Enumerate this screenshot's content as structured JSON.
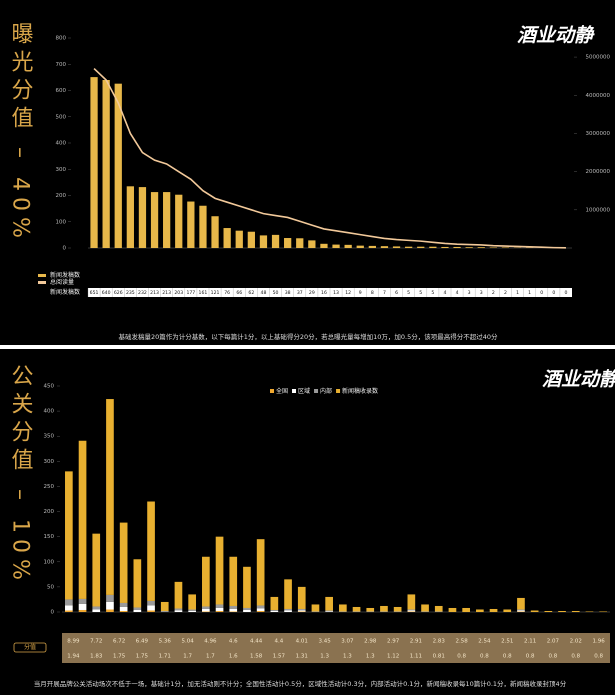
{
  "panels": [
    {
      "side_title": "曝光分值 – 40%",
      "logo": "酒业动静",
      "note": "基础发稿量20篇作为计分基数，以下每篇计1分，以上基础得分20分，若总曝光量每增加10万，加0.5分，该项最高得分不超过40分"
    },
    {
      "side_title": "公关分值 – 10%",
      "logo": "酒业动静",
      "note": "当月开展品牌公关活动场次不低于一场，基础计1分，加无活动则不计分；全国性活动计0.5分，区域性活动计0.3分，内部活动计0.1分，新闻稿收录每10篇计0.1分，新闻稿收录封顶4分",
      "score_label": "分值",
      "scores": [
        8.99,
        7.72,
        6.72,
        6.49,
        5.36,
        5.04,
        4.96,
        4.6,
        4.44,
        4.4,
        4.01,
        3.45,
        3.07,
        2.98,
        2.97,
        2.91,
        2.83,
        2.58,
        2.54,
        2.51,
        2.11,
        2.07,
        2.02,
        1.96,
        1.94,
        1.83,
        1.75,
        1.75,
        1.71,
        1.7,
        1.7,
        1.6,
        1.58,
        1.57,
        1.31,
        1.3,
        1.3,
        1.3,
        1.12,
        1.11,
        0.81,
        0.8,
        0.8,
        0.8,
        0.8,
        0.8,
        0.8,
        0.8
      ]
    }
  ],
  "chart_data": [
    {
      "type": "combo",
      "categories": [
        null,
        null,
        null,
        null,
        null,
        null,
        null,
        null,
        null,
        null,
        null,
        null,
        null,
        null,
        null,
        null,
        null,
        null,
        null,
        null,
        null,
        null,
        null,
        null,
        null,
        null,
        null,
        null,
        null,
        null,
        null,
        null,
        null,
        null,
        null,
        null,
        null,
        null,
        null,
        null
      ],
      "series": [
        {
          "name": "新闻发稿数",
          "color": "#e8b84a",
          "mark": "bar",
          "values": [
            651,
            640,
            626,
            235,
            232,
            213,
            213,
            203,
            177,
            161,
            121,
            76,
            66,
            62,
            48,
            50,
            38,
            37,
            29,
            16,
            13,
            12,
            9,
            8,
            7,
            6,
            5,
            5,
            5,
            4,
            4,
            3,
            3,
            2,
            2,
            1,
            1,
            0,
            0,
            0
          ]
        },
        {
          "name": "总阅读量",
          "color": "#f2c99a",
          "mark": "line",
          "axis": "y2",
          "values": [
            4700000,
            4400000,
            3800000,
            3000000,
            2500000,
            2300000,
            2200000,
            2000000,
            1800000,
            1500000,
            1300000,
            1200000,
            1100000,
            1000000,
            900000,
            850000,
            800000,
            700000,
            600000,
            500000,
            450000,
            400000,
            350000,
            300000,
            250000,
            220000,
            200000,
            180000,
            150000,
            120000,
            100000,
            90000,
            80000,
            60000,
            50000,
            40000,
            30000,
            20000,
            10000,
            5000
          ]
        }
      ],
      "ylim": [
        0,
        800
      ],
      "yticks": [
        0,
        100,
        200,
        300,
        400,
        500,
        600,
        700,
        800
      ],
      "y2lim": [
        0,
        5500000
      ],
      "y2ticks": [
        1000000,
        2000000,
        3000000,
        4000000,
        5000000
      ]
    },
    {
      "type": "stacked-bar",
      "categories": [
        null,
        null,
        null,
        null,
        null,
        null,
        null,
        null,
        null,
        null,
        null,
        null,
        null,
        null,
        null,
        null,
        null,
        null,
        null,
        null,
        null,
        null,
        null,
        null,
        null,
        null,
        null,
        null,
        null,
        null,
        null,
        null,
        null,
        null,
        null,
        null,
        null,
        null,
        null,
        null
      ],
      "series": [
        {
          "name": "全国",
          "color": "#f0a830",
          "values": [
            3,
            4,
            0,
            5,
            2,
            0,
            3,
            0,
            0,
            0,
            1,
            2,
            1,
            0,
            2,
            0,
            0,
            1,
            0,
            0,
            0,
            0,
            0,
            0,
            0,
            1,
            0,
            0,
            0,
            0,
            0,
            0,
            0,
            1,
            0,
            0,
            0,
            0,
            0,
            0
          ]
        },
        {
          "name": "区域",
          "color": "#ffffff",
          "values": [
            10,
            12,
            5,
            15,
            8,
            4,
            10,
            0,
            3,
            2,
            5,
            6,
            5,
            4,
            5,
            2,
            3,
            2,
            0,
            1,
            0,
            0,
            0,
            0,
            0,
            2,
            0,
            0,
            0,
            0,
            0,
            0,
            0,
            2,
            0,
            0,
            0,
            0,
            0,
            0
          ]
        },
        {
          "name": "内部",
          "color": "#9a9a9a",
          "values": [
            12,
            10,
            6,
            14,
            8,
            5,
            9,
            2,
            4,
            3,
            5,
            7,
            6,
            4,
            6,
            2,
            3,
            3,
            1,
            2,
            1,
            1,
            1,
            1,
            1,
            2,
            1,
            1,
            0,
            0,
            0,
            0,
            0,
            2,
            0,
            0,
            0,
            0,
            0,
            0
          ]
        },
        {
          "name": "新闻稿收录数",
          "color": "#e8b030",
          "values": [
            255,
            315,
            145,
            390,
            160,
            96,
            198,
            18,
            53,
            30,
            99,
            135,
            98,
            82,
            132,
            26,
            59,
            44,
            14,
            27,
            14,
            9,
            7,
            11,
            9,
            30,
            14,
            11,
            8,
            8,
            5,
            6,
            5,
            23,
            3,
            2,
            2,
            2,
            1,
            1
          ]
        }
      ],
      "ylim": [
        0,
        450
      ],
      "yticks": [
        0,
        50,
        100,
        150,
        200,
        250,
        300,
        350,
        400,
        450
      ]
    }
  ]
}
